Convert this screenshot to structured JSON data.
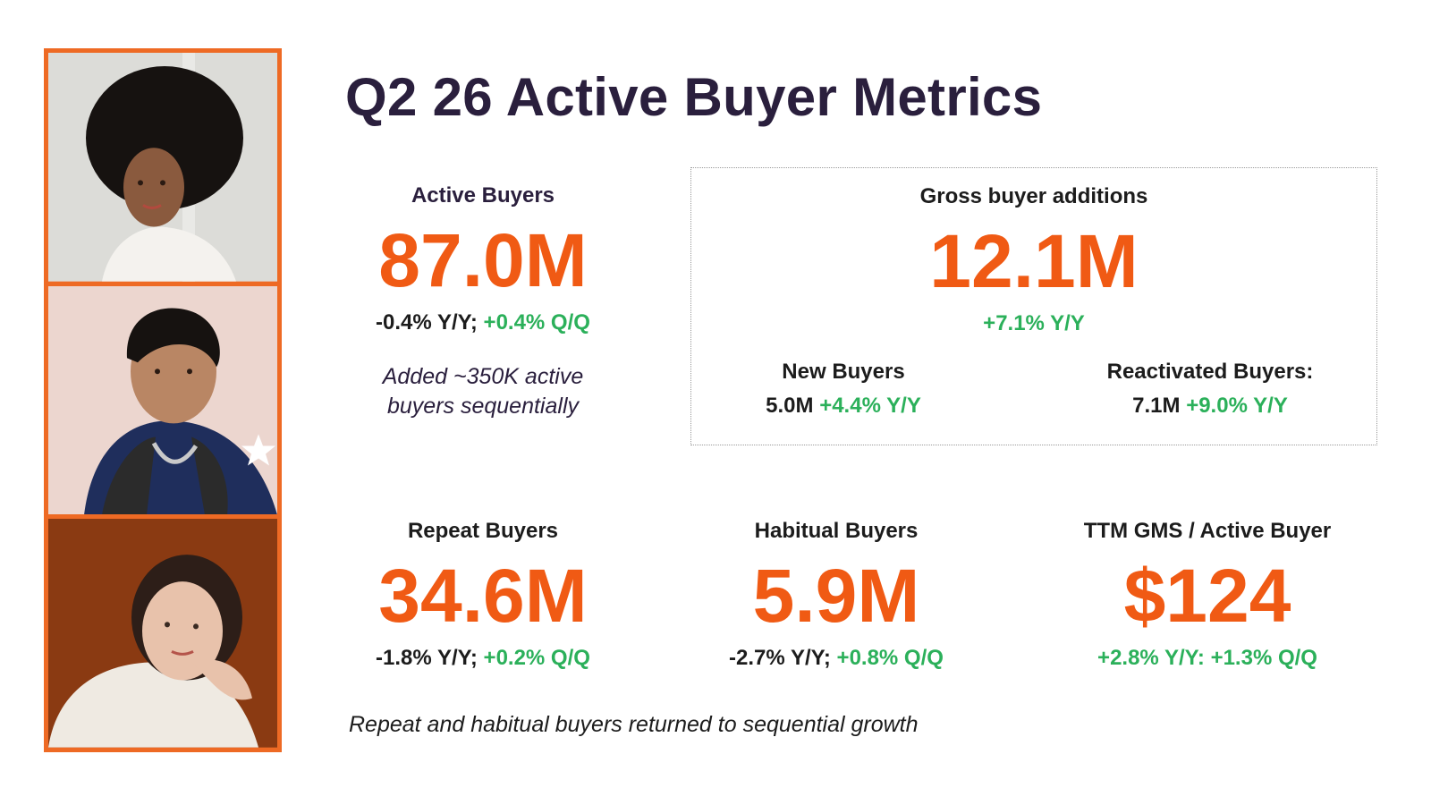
{
  "slide": {
    "title": "Q2 26 Active Buyer Metrics",
    "accent_color": "#f05a14",
    "positive_color": "#2bb05a"
  },
  "photos": [
    {
      "name": "portrait-woman-afro"
    },
    {
      "name": "portrait-man-denim-vest"
    },
    {
      "name": "portrait-woman-hand-on-cheek"
    }
  ],
  "active_buyers": {
    "label": "Active Buyers",
    "value": "87.0M",
    "yoy": "-0.4% Y/Y;",
    "qoq": "+0.4% Q/Q",
    "note_line1": "Added ~350K active",
    "note_line2": "buyers sequentially"
  },
  "gross_additions": {
    "label": "Gross buyer additions",
    "value": "12.1M",
    "yoy": "+7.1% Y/Y",
    "new_buyers": {
      "label": "New Buyers",
      "value": "5.0M",
      "change": "+4.4% Y/Y"
    },
    "reactivated_buyers": {
      "label": "Reactivated Buyers:",
      "value": "7.1M",
      "change": "+9.0% Y/Y"
    }
  },
  "repeat_buyers": {
    "label": "Repeat Buyers",
    "value": "34.6M",
    "yoy": "-1.8% Y/Y;",
    "qoq": "+0.2% Q/Q"
  },
  "habitual_buyers": {
    "label": "Habitual Buyers",
    "value": "5.9M",
    "yoy": "-2.7% Y/Y;",
    "qoq": "+0.8% Q/Q"
  },
  "ttm_gms": {
    "label": "TTM GMS / Active Buyer",
    "value": "$124",
    "change": "+2.8% Y/Y: +1.3% Q/Q"
  },
  "footnote": "Repeat and habitual buyers returned to sequential growth"
}
